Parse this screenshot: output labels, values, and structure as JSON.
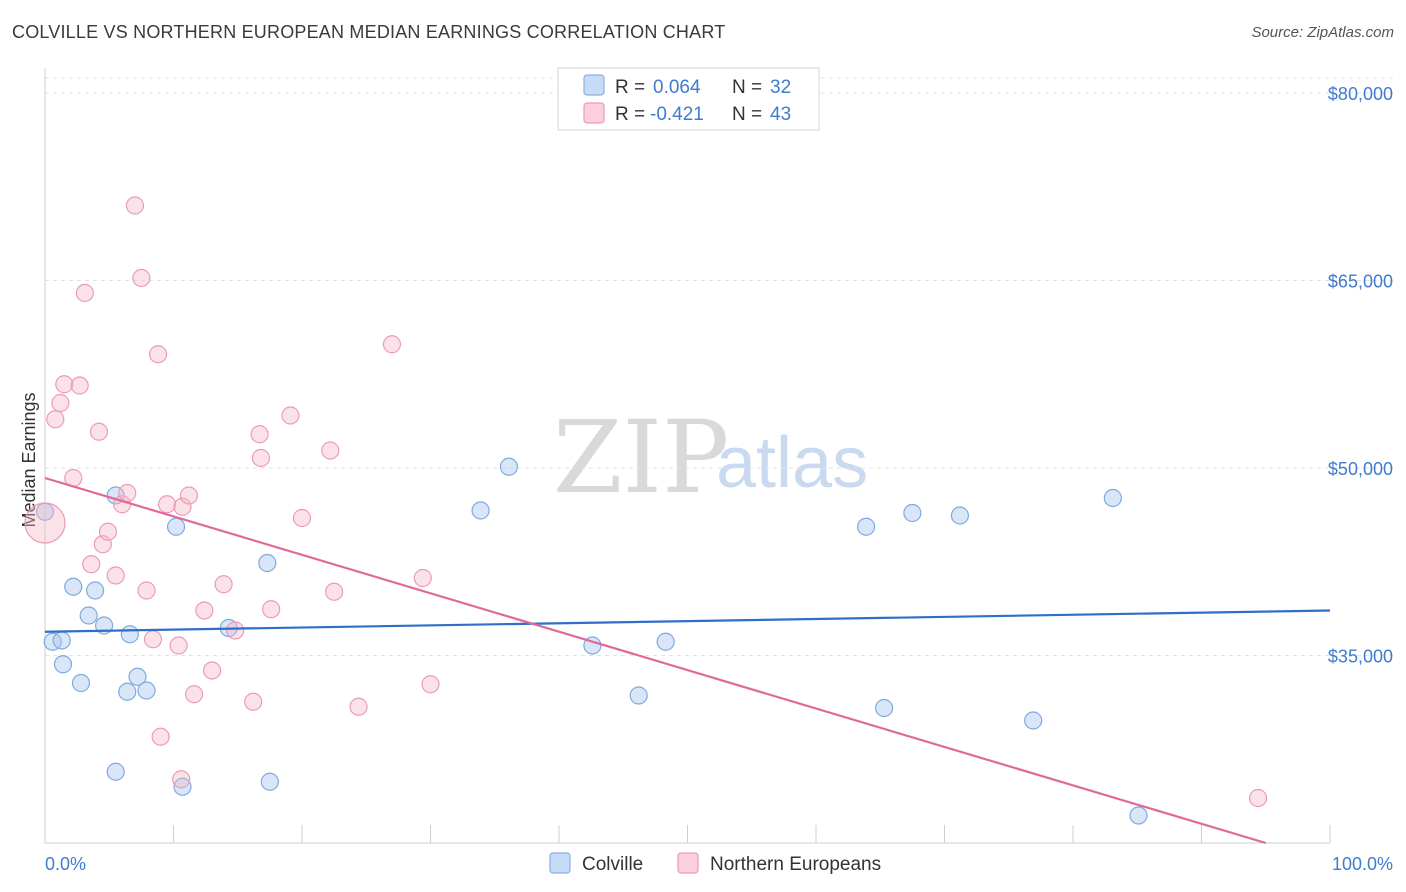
{
  "header": {
    "title": "COLVILLE VS NORTHERN EUROPEAN MEDIAN EARNINGS CORRELATION CHART",
    "source": "Source: ZipAtlas.com"
  },
  "watermark": {
    "zip": "ZIP",
    "atlas": "atlas"
  },
  "legend_top": [
    {
      "r_label": "R =",
      "r_value": "0.064",
      "n_label": "N =",
      "n_value": "32",
      "color": "#a9c8ef"
    },
    {
      "r_label": "R =",
      "r_value": "-0.421",
      "n_label": "N =",
      "n_value": "43",
      "color": "#f6b6c8"
    }
  ],
  "legend_bottom": [
    {
      "label": "Colville",
      "color": "#a9c8ef"
    },
    {
      "label": "Northern Europeans",
      "color": "#f6b6c8"
    }
  ],
  "chart_data": {
    "type": "scatter",
    "xlabel": "",
    "ylabel": "Median Earnings",
    "xlim": [
      0,
      100
    ],
    "ylim": [
      20000,
      82000
    ],
    "x_tick_labels": [
      "0.0%",
      "100.0%"
    ],
    "y_ticks": [
      35000,
      50000,
      65000,
      80000
    ],
    "y_tick_labels": [
      "$35,000",
      "$50,000",
      "$65,000",
      "$80,000"
    ],
    "grid": true,
    "series": [
      {
        "name": "Colville",
        "color": "#a9c8ef",
        "line_color": "#2f6fc7",
        "trend": {
          "x": [
            0,
            100
          ],
          "y": [
            36900,
            38600
          ]
        },
        "points": [
          [
            0.0,
            46500
          ],
          [
            0.6,
            36100
          ],
          [
            1.3,
            36200
          ],
          [
            1.4,
            34300
          ],
          [
            2.2,
            40500
          ],
          [
            2.8,
            32800
          ],
          [
            3.4,
            38200
          ],
          [
            3.9,
            40200
          ],
          [
            4.6,
            37400
          ],
          [
            5.5,
            25700
          ],
          [
            5.5,
            47800
          ],
          [
            6.4,
            32100
          ],
          [
            6.6,
            36700
          ],
          [
            7.2,
            33300
          ],
          [
            7.9,
            32200
          ],
          [
            10.2,
            45300
          ],
          [
            10.7,
            24500
          ],
          [
            14.3,
            37200
          ],
          [
            17.3,
            42400
          ],
          [
            17.5,
            24900
          ],
          [
            33.9,
            46600
          ],
          [
            36.1,
            50100
          ],
          [
            42.6,
            35800
          ],
          [
            46.2,
            31800
          ],
          [
            48.3,
            36100
          ],
          [
            63.9,
            45300
          ],
          [
            65.3,
            30800
          ],
          [
            67.5,
            46400
          ],
          [
            71.2,
            46200
          ],
          [
            76.9,
            29800
          ],
          [
            83.1,
            47600
          ],
          [
            85.1,
            22200
          ]
        ]
      },
      {
        "name": "Northern Europeans",
        "color": "#f6b6c8",
        "line_color": "#e0699a",
        "trend": {
          "x": [
            0,
            95
          ],
          "y": [
            49200,
            20000
          ]
        },
        "points": [
          [
            0.0,
            45600
          ],
          [
            0.8,
            53900
          ],
          [
            1.2,
            55200
          ],
          [
            1.5,
            56700
          ],
          [
            2.2,
            49200
          ],
          [
            2.7,
            56600
          ],
          [
            3.1,
            64000
          ],
          [
            3.6,
            42300
          ],
          [
            4.2,
            52900
          ],
          [
            4.5,
            43900
          ],
          [
            4.9,
            44900
          ],
          [
            5.5,
            41400
          ],
          [
            6.0,
            47100
          ],
          [
            6.4,
            48000
          ],
          [
            7.0,
            71000
          ],
          [
            7.5,
            65200
          ],
          [
            7.9,
            40200
          ],
          [
            8.4,
            36300
          ],
          [
            8.8,
            59100
          ],
          [
            9.0,
            28500
          ],
          [
            9.5,
            47100
          ],
          [
            10.4,
            35800
          ],
          [
            10.6,
            25100
          ],
          [
            10.7,
            46900
          ],
          [
            11.2,
            47800
          ],
          [
            11.6,
            31900
          ],
          [
            12.4,
            38600
          ],
          [
            13.0,
            33800
          ],
          [
            13.9,
            40700
          ],
          [
            14.8,
            37000
          ],
          [
            16.2,
            31300
          ],
          [
            16.7,
            52700
          ],
          [
            16.8,
            50800
          ],
          [
            17.6,
            38700
          ],
          [
            19.1,
            54200
          ],
          [
            20.0,
            46000
          ],
          [
            22.2,
            51400
          ],
          [
            22.5,
            40100
          ],
          [
            24.4,
            30900
          ],
          [
            27.0,
            59900
          ],
          [
            29.4,
            41200
          ],
          [
            30.0,
            32700
          ],
          [
            94.4,
            23600
          ]
        ]
      }
    ]
  }
}
